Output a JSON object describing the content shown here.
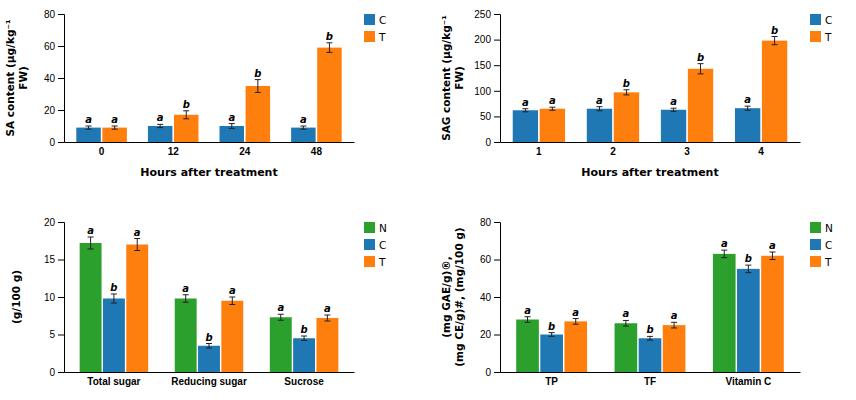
{
  "chart_data": [
    {
      "type": "bar",
      "x_label": "Hours after treatment",
      "y_label": "SA content (μg/kg⁻¹\nFW)",
      "categories": [
        "0",
        "12",
        "24",
        "48"
      ],
      "series": [
        {
          "name": "C",
          "values": [
            9,
            10,
            10,
            9
          ],
          "errors": [
            1,
            1,
            1.5,
            1
          ],
          "annotations": [
            "a",
            "a",
            "a",
            "a"
          ]
        },
        {
          "name": "T",
          "values": [
            9,
            17,
            35,
            59
          ],
          "errors": [
            1,
            2.5,
            4,
            3
          ],
          "annotations": [
            "a",
            "b",
            "b",
            "b"
          ]
        }
      ],
      "ylim": [
        0,
        80
      ],
      "yticks": [
        0,
        20,
        40,
        60,
        80
      ],
      "grid": false,
      "legend": "right"
    },
    {
      "type": "bar",
      "x_label": "Hours after treatment",
      "y_label": "SAG content (μg/kg⁻¹\nFW)",
      "categories": [
        "1",
        "2",
        "3",
        "4"
      ],
      "series": [
        {
          "name": "C",
          "values": [
            62,
            65,
            63,
            66
          ],
          "errors": [
            3,
            4,
            3,
            4
          ],
          "annotations": [
            "a",
            "a",
            "a",
            "a"
          ]
        },
        {
          "name": "T",
          "values": [
            65,
            97,
            143,
            198
          ],
          "errors": [
            3,
            5,
            10,
            8
          ],
          "annotations": [
            "a",
            "b",
            "b",
            "b"
          ]
        }
      ],
      "ylim": [
        0,
        250
      ],
      "yticks": [
        0,
        50,
        100,
        150,
        200,
        250
      ],
      "grid": false,
      "legend": "right"
    },
    {
      "type": "bar",
      "y_label": "(g/100 g)",
      "categories": [
        "Total sugar",
        "Reducing sugar",
        "Sucrose"
      ],
      "series": [
        {
          "name": "N",
          "values": [
            17.2,
            9.8,
            7.3
          ],
          "errors": [
            0.8,
            0.5,
            0.4
          ],
          "annotations": [
            "a",
            "a",
            "a"
          ]
        },
        {
          "name": "C",
          "values": [
            9.8,
            3.5,
            4.5
          ],
          "errors": [
            0.6,
            0.3,
            0.3
          ],
          "annotations": [
            "b",
            "b",
            "b"
          ]
        },
        {
          "name": "T",
          "values": [
            17.0,
            9.5,
            7.2
          ],
          "errors": [
            0.8,
            0.5,
            0.4
          ],
          "annotations": [
            "a",
            "a",
            "a"
          ]
        }
      ],
      "ylim": [
        0,
        20
      ],
      "yticks": [
        0,
        5,
        10,
        15,
        20
      ],
      "grid": false,
      "legend": "right"
    },
    {
      "type": "bar",
      "y_label": "(mg GAE/g)®,\n(mg CE/g)#, (mg/100 g)",
      "categories": [
        "TP",
        "TF",
        "Vitamin C"
      ],
      "series": [
        {
          "name": "N",
          "values": [
            28,
            26,
            63
          ],
          "errors": [
            1.5,
            1.5,
            2
          ],
          "annotations": [
            "a",
            "a",
            "a"
          ]
        },
        {
          "name": "C",
          "values": [
            20,
            18,
            55
          ],
          "errors": [
            1.0,
            1.0,
            2
          ],
          "annotations": [
            "b",
            "b",
            "b"
          ]
        },
        {
          "name": "T",
          "values": [
            27,
            25,
            62
          ],
          "errors": [
            1.5,
            1.5,
            2
          ],
          "annotations": [
            "a",
            "a",
            "a"
          ]
        }
      ],
      "ylim": [
        0,
        80
      ],
      "yticks": [
        0,
        20,
        40,
        60,
        80
      ],
      "grid": false,
      "legend": "right"
    }
  ]
}
